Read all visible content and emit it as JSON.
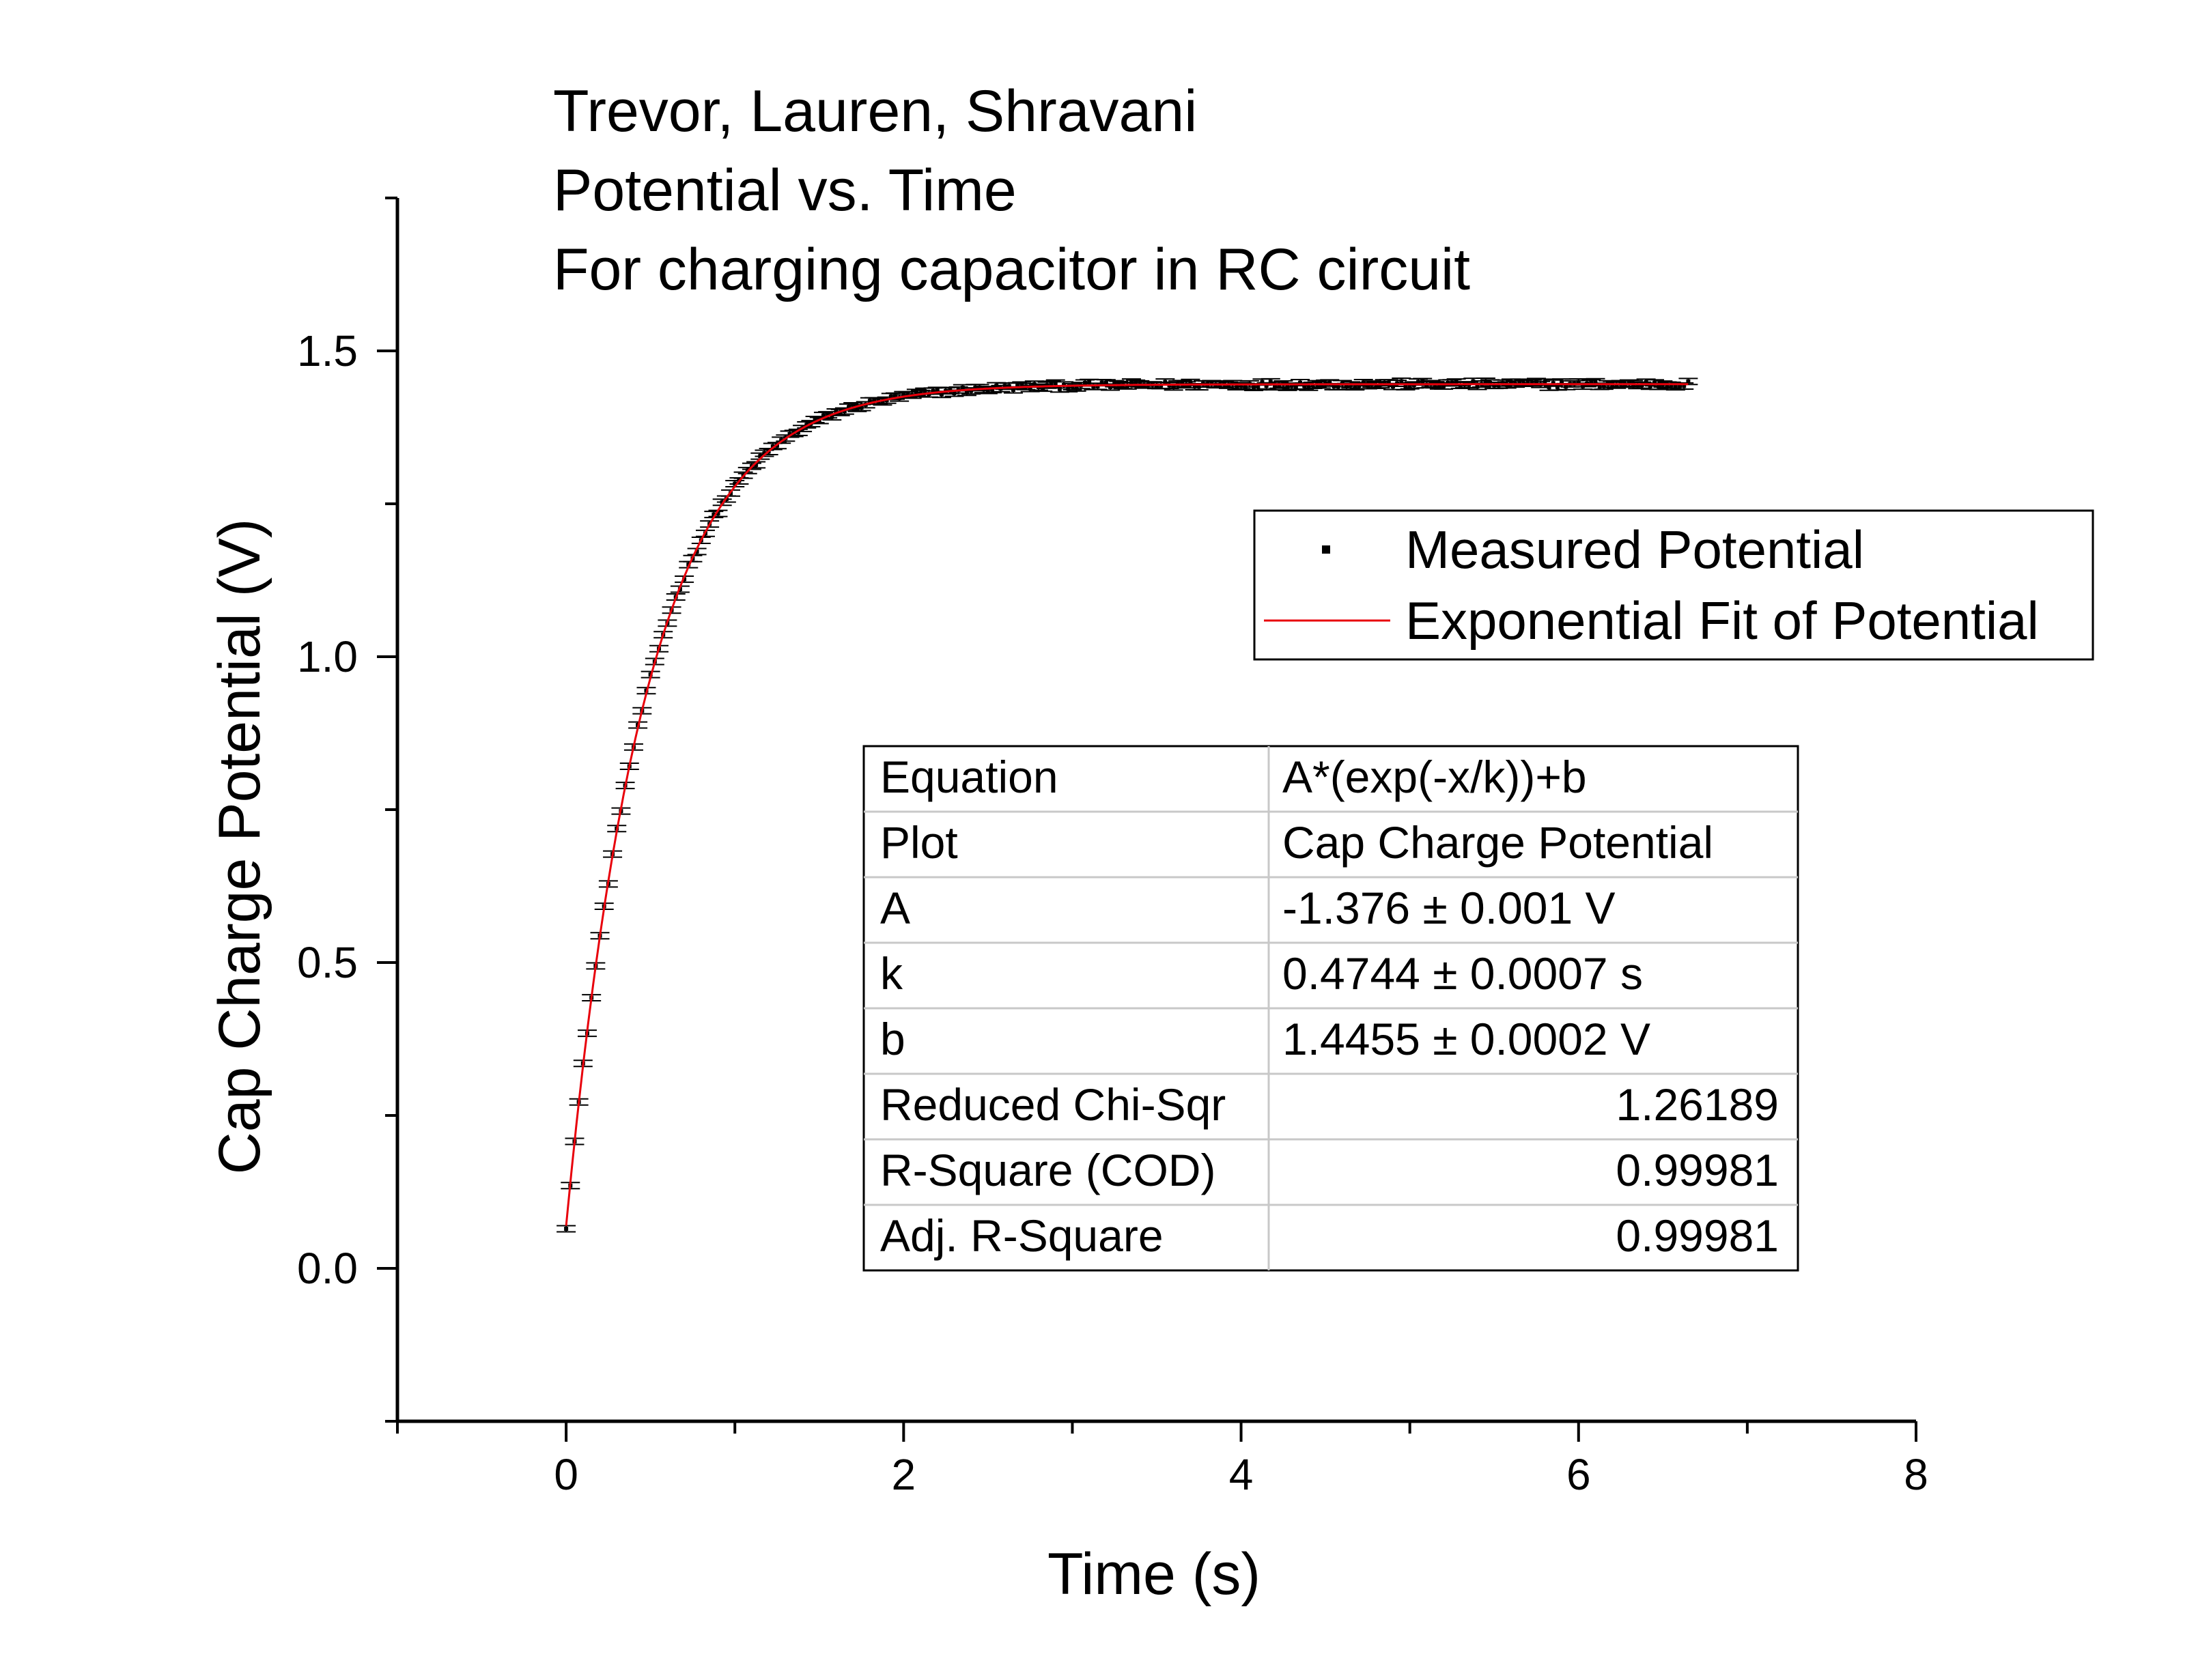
{
  "chart_data": {
    "type": "scatter",
    "title_lines": [
      "Trevor, Lauren, Shravani",
      "Potential vs. Time",
      "For charging capacitor in RC circuit"
    ],
    "xlabel": "Time (s)",
    "ylabel": "Cap Charge Potential (V)",
    "xlim": [
      -1,
      8
    ],
    "ylim": [
      -0.25,
      1.75
    ],
    "x_ticks": [
      0,
      2,
      4,
      6,
      8
    ],
    "x_tick_labels": [
      "0",
      "2",
      "4",
      "6",
      "8"
    ],
    "y_ticks": [
      0,
      0.5,
      1.0,
      1.5
    ],
    "y_tick_labels": [
      "0.0",
      "0.5",
      "1.0",
      "1.5"
    ],
    "x_minor_step": 1,
    "y_minor_step": 0.25,
    "grid": false,
    "series": [
      {
        "name": "Measured Potential",
        "kind": "points-with-error-bars",
        "color": "#000000",
        "x_range": [
          0,
          6.65
        ],
        "sample_step": 0.025,
        "error": 0.005,
        "model": "A*(exp(-x/k))+b"
      },
      {
        "name": "Exponential Fit of Potential",
        "kind": "line",
        "color": "#e8000b",
        "x_range": [
          0,
          6.65
        ],
        "model": "A*(exp(-x/k))+b"
      }
    ],
    "fit_params": {
      "A": -1.376,
      "k": 0.4744,
      "b": 1.4455
    },
    "legend": {
      "placement": "right-middle",
      "entries": [
        "Measured Potential",
        "Exponential Fit of Potential"
      ]
    },
    "fit_table": {
      "rows": [
        [
          "Equation",
          "A*(exp(-x/k))+b"
        ],
        [
          "Plot",
          "Cap Charge Potential"
        ],
        [
          "A",
          "-1.376 ± 0.001 V"
        ],
        [
          "k",
          "0.4744 ± 0.0007 s"
        ],
        [
          "b",
          "1.4455 ± 0.0002 V"
        ],
        [
          "Reduced Chi-Sqr",
          "1.26189"
        ],
        [
          "R-Square (COD)",
          "0.99981"
        ],
        [
          "Adj. R-Square",
          "0.99981"
        ]
      ],
      "right_aligned_rows": [
        5,
        6,
        7
      ]
    }
  }
}
